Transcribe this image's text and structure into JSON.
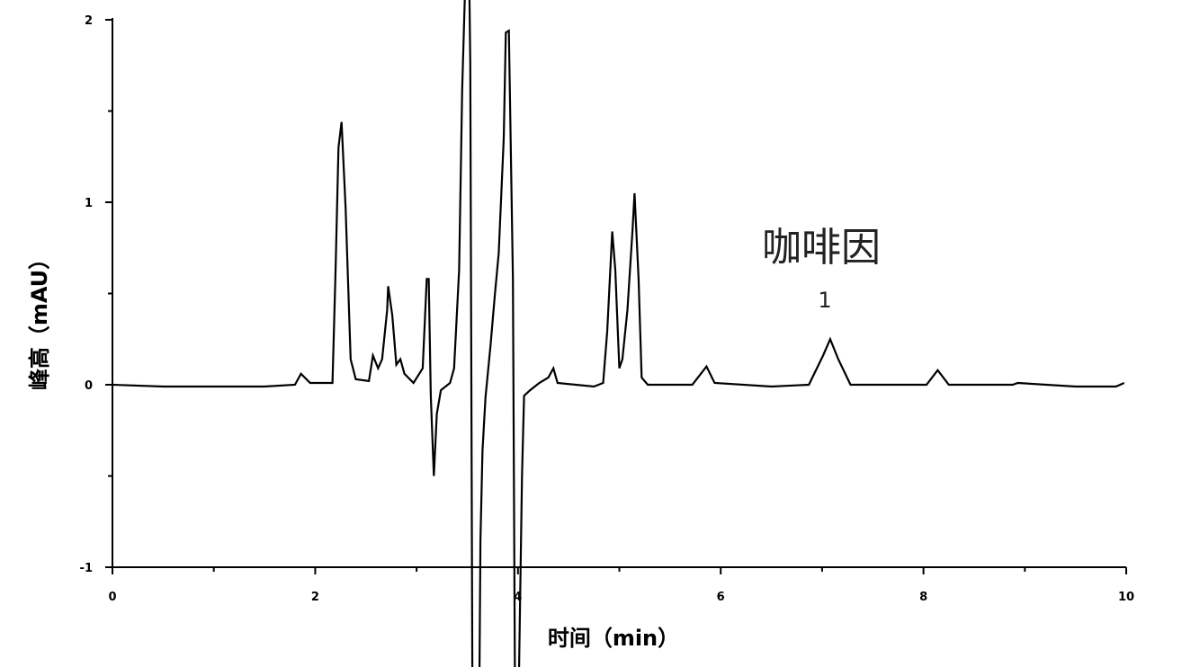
{
  "chart_data": {
    "type": "line",
    "title": "",
    "xlabel": "时间（min）",
    "ylabel": "峰高（mAU）",
    "xlim": [
      0,
      10
    ],
    "ylim": [
      -1,
      2
    ],
    "x_ticks": [
      0,
      2,
      4,
      6,
      8,
      10
    ],
    "x_tick_labels": [
      "0",
      "2",
      "4",
      "6",
      "8",
      "10"
    ],
    "y_ticks": [
      -1,
      0,
      1,
      2
    ],
    "y_tick_labels": [
      "-1",
      "0",
      "1",
      "2"
    ],
    "grid": false,
    "annotations": [
      {
        "text": "咖啡因",
        "x": 7.1,
        "y": 0.75
      },
      {
        "text": "1",
        "x": 7.08,
        "y": 0.45
      }
    ],
    "series": [
      {
        "color": "#000000",
        "points": [
          [
            0,
            0
          ],
          [
            0.5,
            -0.01
          ],
          [
            1.0,
            -0.01
          ],
          [
            1.5,
            -0.01
          ],
          [
            1.8,
            0
          ],
          [
            1.86,
            0.06
          ],
          [
            1.95,
            0.01
          ],
          [
            2.17,
            0.01
          ],
          [
            2.2,
            0.6
          ],
          [
            2.23,
            1.3
          ],
          [
            2.26,
            1.44
          ],
          [
            2.3,
            0.97
          ],
          [
            2.35,
            0.14
          ],
          [
            2.4,
            0.03
          ],
          [
            2.53,
            0.02
          ],
          [
            2.57,
            0.16
          ],
          [
            2.62,
            0.09
          ],
          [
            2.66,
            0.14
          ],
          [
            2.71,
            0.41
          ],
          [
            2.72,
            0.54
          ],
          [
            2.76,
            0.38
          ],
          [
            2.8,
            0.11
          ],
          [
            2.84,
            0.14
          ],
          [
            2.88,
            0.06
          ],
          [
            2.97,
            0.01
          ],
          [
            3.06,
            0.09
          ],
          [
            3.1,
            0.58
          ],
          [
            3.12,
            0.58
          ],
          [
            3.14,
            -0.06
          ],
          [
            3.17,
            -0.5
          ],
          [
            3.2,
            -0.16
          ],
          [
            3.24,
            -0.03
          ],
          [
            3.33,
            0.01
          ],
          [
            3.37,
            0.09
          ],
          [
            3.42,
            0.63
          ],
          [
            3.45,
            1.62
          ],
          [
            3.48,
            2.2
          ],
          [
            3.52,
            2.2
          ],
          [
            3.53,
            1.76
          ],
          [
            3.55,
            -1.6
          ],
          [
            3.62,
            -1.6
          ],
          [
            3.63,
            -0.85
          ],
          [
            3.65,
            -0.36
          ],
          [
            3.68,
            -0.07
          ],
          [
            3.73,
            0.22
          ],
          [
            3.77,
            0.48
          ],
          [
            3.81,
            0.72
          ],
          [
            3.86,
            1.35
          ],
          [
            3.88,
            1.93
          ],
          [
            3.91,
            1.94
          ],
          [
            3.95,
            0.58
          ],
          [
            3.97,
            -1.6
          ],
          [
            4.01,
            -1.6
          ],
          [
            4.04,
            -0.5
          ],
          [
            4.06,
            -0.06
          ],
          [
            4.12,
            -0.03
          ],
          [
            4.21,
            0.01
          ],
          [
            4.3,
            0.04
          ],
          [
            4.35,
            0.09
          ],
          [
            4.39,
            0.01
          ],
          [
            4.75,
            -0.01
          ],
          [
            4.84,
            0.01
          ],
          [
            4.88,
            0.29
          ],
          [
            4.93,
            0.84
          ],
          [
            4.96,
            0.63
          ],
          [
            5.0,
            0.09
          ],
          [
            5.03,
            0.14
          ],
          [
            5.08,
            0.41
          ],
          [
            5.13,
            0.85
          ],
          [
            5.15,
            1.05
          ],
          [
            5.19,
            0.58
          ],
          [
            5.22,
            0.04
          ],
          [
            5.28,
            0
          ],
          [
            5.72,
            0
          ],
          [
            5.86,
            0.1
          ],
          [
            5.94,
            0.01
          ],
          [
            6.5,
            -0.01
          ],
          [
            6.87,
            0
          ],
          [
            7.01,
            0.16
          ],
          [
            7.08,
            0.25
          ],
          [
            7.16,
            0.14
          ],
          [
            7.28,
            0
          ],
          [
            8.03,
            0
          ],
          [
            8.14,
            0.08
          ],
          [
            8.25,
            0
          ],
          [
            8.88,
            0
          ],
          [
            8.93,
            0.01
          ],
          [
            9.5,
            -0.01
          ],
          [
            9.9,
            -0.01
          ],
          [
            9.98,
            0.01
          ]
        ]
      }
    ]
  }
}
